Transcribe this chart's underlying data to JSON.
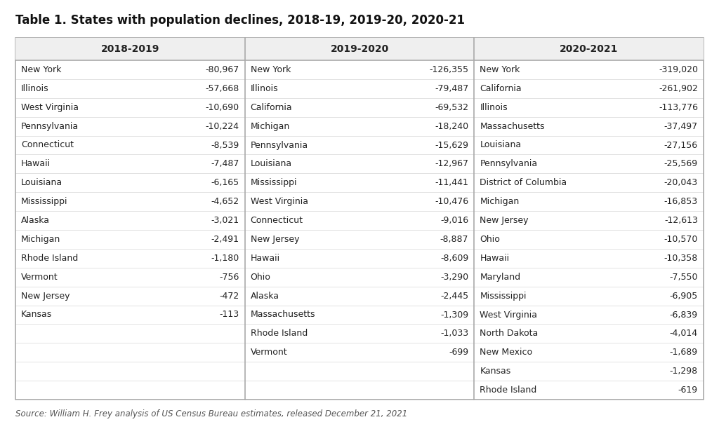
{
  "title": "Table 1. States with population declines, 2018-19, 2019-20, 2020-21",
  "source": "Source: William H. Frey analysis of US Census Bureau estimates, released December 21, 2021",
  "col1_header": "2018-2019",
  "col2_header": "2019-2020",
  "col3_header": "2020-2021",
  "col1_data": [
    [
      "New York",
      "-80,967"
    ],
    [
      "Illinois",
      "-57,668"
    ],
    [
      "West Virginia",
      "-10,690"
    ],
    [
      "Pennsylvania",
      "-10,224"
    ],
    [
      "Connecticut",
      "-8,539"
    ],
    [
      "Hawaii",
      "-7,487"
    ],
    [
      "Louisiana",
      "-6,165"
    ],
    [
      "Mississippi",
      "-4,652"
    ],
    [
      "Alaska",
      "-3,021"
    ],
    [
      "Michigan",
      "-2,491"
    ],
    [
      "Rhode Island",
      "-1,180"
    ],
    [
      "Vermont",
      "-756"
    ],
    [
      "New Jersey",
      "-472"
    ],
    [
      "Kansas",
      "-113"
    ],
    [
      "",
      ""
    ],
    [
      "",
      ""
    ],
    [
      "",
      ""
    ],
    [
      "",
      ""
    ]
  ],
  "col2_data": [
    [
      "New York",
      "-126,355"
    ],
    [
      "Illinois",
      "-79,487"
    ],
    [
      "California",
      "-69,532"
    ],
    [
      "Michigan",
      "-18,240"
    ],
    [
      "Pennsylvania",
      "-15,629"
    ],
    [
      "Louisiana",
      "-12,967"
    ],
    [
      "Mississippi",
      "-11,441"
    ],
    [
      "West Virginia",
      "-10,476"
    ],
    [
      "Connecticut",
      "-9,016"
    ],
    [
      "New Jersey",
      "-8,887"
    ],
    [
      "Hawaii",
      "-8,609"
    ],
    [
      "Ohio",
      "-3,290"
    ],
    [
      "Alaska",
      "-2,445"
    ],
    [
      "Massachusetts",
      "-1,309"
    ],
    [
      "Rhode Island",
      "-1,033"
    ],
    [
      "Vermont",
      "-699"
    ],
    [
      "",
      ""
    ],
    [
      "",
      ""
    ]
  ],
  "col3_data": [
    [
      "New York",
      "-319,020"
    ],
    [
      "California",
      "-261,902"
    ],
    [
      "Illinois",
      "-113,776"
    ],
    [
      "Massachusetts",
      "-37,497"
    ],
    [
      "Louisiana",
      "-27,156"
    ],
    [
      "Pennsylvania",
      "-25,569"
    ],
    [
      "District of Columbia",
      "-20,043"
    ],
    [
      "Michigan",
      "-16,853"
    ],
    [
      "New Jersey",
      "-12,613"
    ],
    [
      "Ohio",
      "-10,570"
    ],
    [
      "Hawaii",
      "-10,358"
    ],
    [
      "Maryland",
      "-7,550"
    ],
    [
      "Mississippi",
      "-6,905"
    ],
    [
      "West Virginia",
      "-6,839"
    ],
    [
      "North Dakota",
      "-4,014"
    ],
    [
      "New Mexico",
      "-1,689"
    ],
    [
      "Kansas",
      "-1,298"
    ],
    [
      "Rhode Island",
      "-619"
    ]
  ],
  "background_color": "#ffffff",
  "header_bg_color": "#efefef",
  "border_color": "#aaaaaa",
  "text_color": "#222222",
  "title_color": "#111111",
  "source_color": "#555555",
  "fig_width": 10.24,
  "fig_height": 6.22,
  "dpi": 100
}
